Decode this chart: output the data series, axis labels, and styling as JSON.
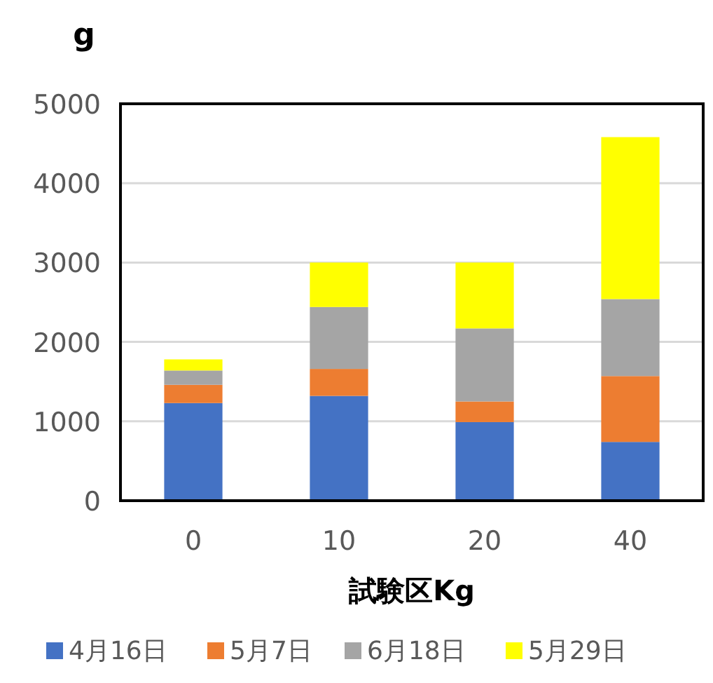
{
  "chart_data": {
    "type": "bar",
    "stacked": true,
    "ylabel": "g",
    "xlabel": "試験区Kg",
    "categories": [
      "0",
      "10",
      "20",
      "40"
    ],
    "series": [
      {
        "name": "4月16日",
        "color": "#4472c4",
        "values": [
          1230,
          1320,
          990,
          740
        ]
      },
      {
        "name": "5月7日",
        "color": "#ed7d31",
        "values": [
          230,
          340,
          260,
          830
        ]
      },
      {
        "name": "6月18日",
        "color": "#a5a5a5",
        "values": [
          180,
          780,
          920,
          970
        ]
      },
      {
        "name": "5月29日",
        "color": "#ffff00",
        "values": [
          140,
          560,
          830,
          2040
        ]
      }
    ],
    "ylim": [
      0,
      5000
    ],
    "yticks": [
      0,
      1000,
      2000,
      3000,
      4000,
      5000
    ],
    "grid": "y",
    "legend": "bottom"
  }
}
